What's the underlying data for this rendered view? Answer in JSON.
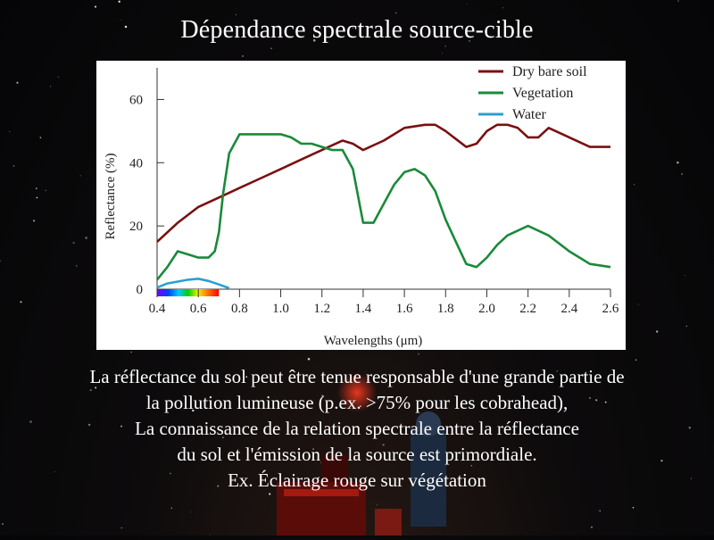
{
  "page": {
    "title": "Dépendance spectrale source-cible",
    "caption_lines": [
      "La réflectance du sol peut être tenue responsable d'une grande partie de",
      "la pollution lumineuse (p.ex. >75% pour les cobrahead),",
      "La connaissance de la relation spectrale entre la réflectance",
      "du sol et l'émission de la source est primordiale.",
      "Ex. Éclairage rouge sur végétation"
    ]
  },
  "chart_data": {
    "type": "line",
    "xlabel": "Wavelengths (μm)",
    "ylabel": "Reflectance (%)",
    "xlim": [
      0.4,
      2.6
    ],
    "ylim": [
      0,
      70
    ],
    "xticks": [
      "0.4",
      "0.6",
      "0.8",
      "1.0",
      "1.2",
      "1.4",
      "1.6",
      "1.8",
      "2.0",
      "2.2",
      "2.4",
      "2.6"
    ],
    "yticks": [
      "0",
      "20",
      "40",
      "60"
    ],
    "legend_position": "top-right",
    "grid": false,
    "series": [
      {
        "name": "Dry bare soil",
        "color": "#7a1010",
        "x": [
          0.4,
          0.5,
          0.6,
          0.7,
          0.8,
          0.9,
          1.0,
          1.1,
          1.2,
          1.3,
          1.35,
          1.4,
          1.5,
          1.6,
          1.7,
          1.75,
          1.8,
          1.9,
          1.95,
          2.0,
          2.05,
          2.1,
          2.15,
          2.2,
          2.25,
          2.3,
          2.4,
          2.5,
          2.6
        ],
        "y": [
          15,
          21,
          26,
          29,
          32,
          35,
          38,
          41,
          44,
          47,
          46,
          44,
          47,
          51,
          52,
          52,
          50,
          45,
          46,
          50,
          52,
          52,
          51,
          48,
          48,
          51,
          48,
          45,
          45
        ]
      },
      {
        "name": "Vegetation",
        "color": "#1a8a3a",
        "x": [
          0.4,
          0.45,
          0.5,
          0.55,
          0.6,
          0.65,
          0.68,
          0.7,
          0.72,
          0.75,
          0.8,
          0.9,
          1.0,
          1.05,
          1.1,
          1.15,
          1.2,
          1.25,
          1.3,
          1.35,
          1.4,
          1.45,
          1.5,
          1.55,
          1.6,
          1.65,
          1.7,
          1.75,
          1.8,
          1.85,
          1.9,
          1.95,
          2.0,
          2.05,
          2.1,
          2.2,
          2.3,
          2.4,
          2.5,
          2.6
        ],
        "y": [
          3,
          7,
          12,
          11,
          10,
          10,
          12,
          18,
          30,
          43,
          49,
          49,
          49,
          48,
          46,
          46,
          45,
          44,
          44,
          38,
          21,
          21,
          27,
          33,
          37,
          38,
          36,
          31,
          22,
          15,
          8,
          7,
          10,
          14,
          17,
          20,
          17,
          12,
          8,
          7
        ]
      },
      {
        "name": "Water",
        "color": "#2aa0d0",
        "x": [
          0.4,
          0.45,
          0.5,
          0.55,
          0.6,
          0.65,
          0.7,
          0.75
        ],
        "y": [
          0.5,
          1.8,
          2.4,
          3.0,
          3.3,
          2.6,
          1.5,
          0.3
        ]
      }
    ]
  }
}
